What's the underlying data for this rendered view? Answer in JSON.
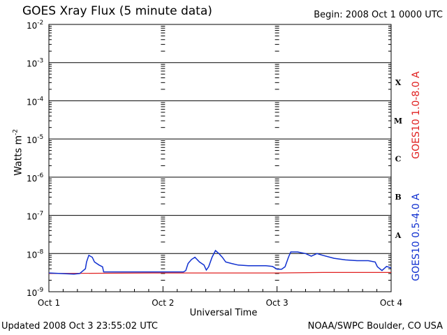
{
  "title": "GOES Xray Flux (5 minute data)",
  "begin": "Begin:  2008 Oct 1 0000 UTC",
  "updated": "Updated 2008 Oct  3 23:55:02 UTC",
  "source": "NOAA/SWPC Boulder, CO USA",
  "colors": {
    "long": "#e02020",
    "short": "#1030d0",
    "axis": "#000000"
  },
  "chart_data": {
    "type": "line",
    "xlabel": "Universal Time",
    "ylabel": "Watts m",
    "ylabel_sup": "-2",
    "xlim": [
      0,
      3
    ],
    "x_unit": "days from 2008 Oct 1 00:00 UTC",
    "ylim": [
      1e-09,
      0.01
    ],
    "yscale": "log",
    "x_ticks": [
      "Oct 1",
      "Oct 2",
      "Oct 3",
      "Oct 4"
    ],
    "y_ticks": [
      {
        "base": "10",
        "exp": "-9"
      },
      {
        "base": "10",
        "exp": "-8"
      },
      {
        "base": "10",
        "exp": "-7"
      },
      {
        "base": "10",
        "exp": "-6"
      },
      {
        "base": "10",
        "exp": "-5"
      },
      {
        "base": "10",
        "exp": "-4"
      },
      {
        "base": "10",
        "exp": "-3"
      },
      {
        "base": "10",
        "exp": "-2"
      }
    ],
    "flare_classes": [
      "A",
      "B",
      "C",
      "M",
      "X"
    ],
    "grid": true,
    "series": [
      {
        "name": "GOES10 1.0-8.0 A",
        "color": "#e02020",
        "points": [
          [
            0.0,
            3e-09
          ],
          [
            0.9,
            3.1e-09
          ],
          [
            1.5,
            3.1e-09
          ],
          [
            2.0,
            3.1e-09
          ],
          [
            2.4,
            3.2e-09
          ],
          [
            3.0,
            3.2e-09
          ]
        ]
      },
      {
        "name": "GOES10 0.5-4.0 A",
        "color": "#1030d0",
        "points": [
          [
            0.0,
            3.1e-09
          ],
          [
            0.1,
            3e-09
          ],
          [
            0.22,
            2.9e-09
          ],
          [
            0.27,
            3e-09
          ],
          [
            0.32,
            4e-09
          ],
          [
            0.33,
            6e-09
          ],
          [
            0.35,
            9e-09
          ],
          [
            0.38,
            8e-09
          ],
          [
            0.4,
            6e-09
          ],
          [
            0.44,
            5e-09
          ],
          [
            0.47,
            4.5e-09
          ],
          [
            0.48,
            3.3e-09
          ],
          [
            0.6,
            3.3e-09
          ],
          [
            0.8,
            3.3e-09
          ],
          [
            1.0,
            3.3e-09
          ],
          [
            1.15,
            3.3e-09
          ],
          [
            1.18,
            3.3e-09
          ],
          [
            1.2,
            3.6e-09
          ],
          [
            1.22,
            5.5e-09
          ],
          [
            1.25,
            7e-09
          ],
          [
            1.28,
            8e-09
          ],
          [
            1.32,
            6e-09
          ],
          [
            1.36,
            5e-09
          ],
          [
            1.38,
            3.7e-09
          ],
          [
            1.4,
            4.5e-09
          ],
          [
            1.43,
            8e-09
          ],
          [
            1.46,
            1.2e-08
          ],
          [
            1.49,
            1e-08
          ],
          [
            1.52,
            8e-09
          ],
          [
            1.55,
            6e-09
          ],
          [
            1.6,
            5.5e-09
          ],
          [
            1.66,
            5e-09
          ],
          [
            1.75,
            4.8e-09
          ],
          [
            1.9,
            4.8e-09
          ],
          [
            1.96,
            4.6e-09
          ],
          [
            2.0,
            3.9e-09
          ],
          [
            2.04,
            3.9e-09
          ],
          [
            2.07,
            4.5e-09
          ],
          [
            2.1,
            8e-09
          ],
          [
            2.12,
            1.1e-08
          ],
          [
            2.18,
            1.1e-08
          ],
          [
            2.25,
            1e-08
          ],
          [
            2.3,
            8.5e-09
          ],
          [
            2.35,
            1e-08
          ],
          [
            2.4,
            9e-09
          ],
          [
            2.5,
            7.5e-09
          ],
          [
            2.6,
            6.8e-09
          ],
          [
            2.7,
            6.5e-09
          ],
          [
            2.8,
            6.5e-09
          ],
          [
            2.86,
            6e-09
          ],
          [
            2.88,
            4.5e-09
          ],
          [
            2.92,
            3.6e-09
          ],
          [
            2.96,
            4.6e-09
          ],
          [
            3.0,
            4.2e-09
          ]
        ]
      }
    ]
  }
}
